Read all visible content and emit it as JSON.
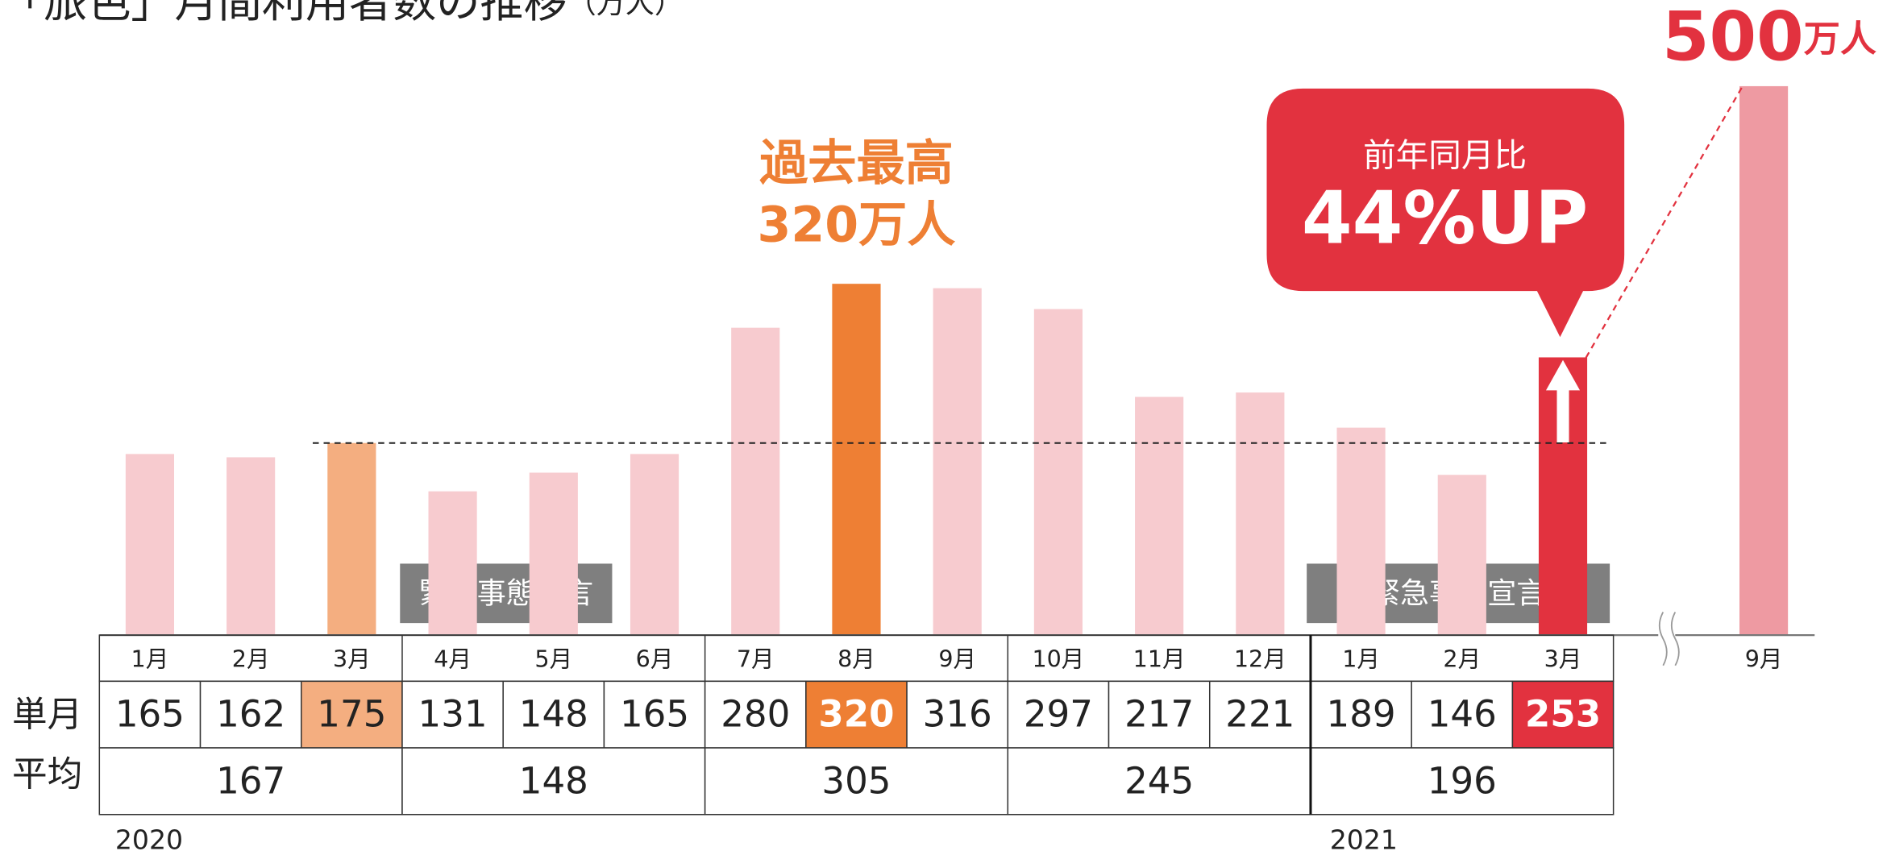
{
  "chart_data": {
    "type": "bar",
    "title": "「旅色」月間利用者数の推移",
    "unit": "（万人）",
    "categories": [
      "1月",
      "2月",
      "3月",
      "4月",
      "5月",
      "6月",
      "7月",
      "8月",
      "9月",
      "10月",
      "11月",
      "12月",
      "1月",
      "2月",
      "3月",
      "9月"
    ],
    "values": [
      165,
      162,
      175,
      131,
      148,
      165,
      280,
      320,
      316,
      297,
      217,
      221,
      189,
      146,
      253,
      500
    ],
    "colors": [
      "#f7cbcf",
      "#f7cbcf",
      "#f4ae80",
      "#f7cbcf",
      "#f7cbcf",
      "#f7cbcf",
      "#f7cbcf",
      "#ee7f34",
      "#f7cbcf",
      "#f7cbcf",
      "#f7cbcf",
      "#f7cbcf",
      "#f7cbcf",
      "#f7cbcf",
      "#e2323f",
      "#ee9aa2"
    ],
    "row_labels": [
      "単月",
      "平均"
    ],
    "averages": [
      167,
      148,
      305,
      245,
      196
    ],
    "years": [
      "2020",
      "2021"
    ],
    "emergency": [
      "緊急事態宣言",
      "緊急事態宣言"
    ],
    "annotations": {
      "record_title": "過去最高",
      "record_value": "320万人",
      "callout_title": "前年同月比",
      "callout_value": "44%UP",
      "peak_unit": "万人"
    }
  }
}
